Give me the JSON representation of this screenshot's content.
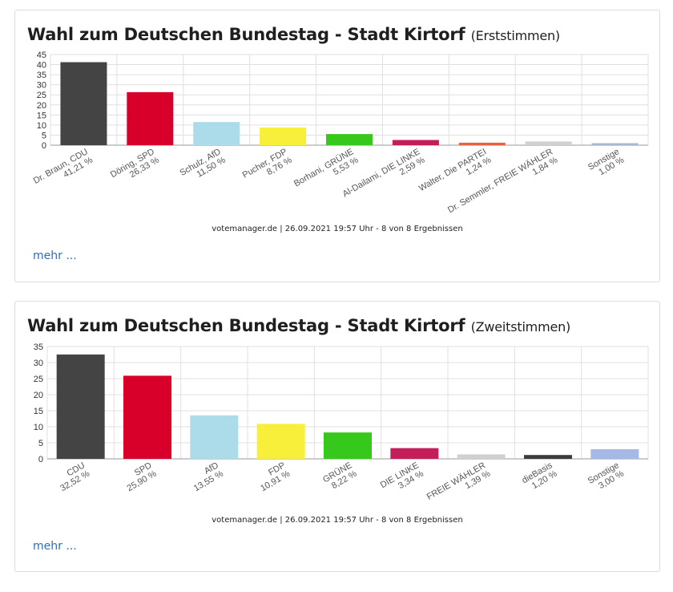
{
  "charts": [
    {
      "title": "Wahl zum Deutschen Bundestag - Stadt Kirtorf",
      "subtitle": "(Erststimmen)",
      "footnote": "votemanager.de | 26.09.2021 19:57 Uhr - 8 von 8 Ergebnissen",
      "more_label": "mehr ..."
    },
    {
      "title": "Wahl zum Deutschen Bundestag - Stadt Kirtorf",
      "subtitle": "(Zweitstimmen)",
      "footnote": "votemanager.de | 26.09.2021 19:57 Uhr - 8 von 8 Ergebnissen",
      "more_label": "mehr ..."
    }
  ],
  "chart_data": [
    {
      "type": "bar",
      "title": "Wahl zum Deutschen Bundestag - Stadt Kirtorf (Erststimmen)",
      "categories": [
        "Dr. Braun, CDU",
        "Döring, SPD",
        "Schulz, AfD",
        "Pucher, FDP",
        "Borhani, GRÜNE",
        "Al-Dailami, DIE LINKE",
        "Walter, Die PARTEI",
        "Dr. Semmler, FREIE WÄHLER",
        "Sonstige"
      ],
      "values": [
        41.21,
        26.33,
        11.5,
        8.76,
        5.53,
        2.59,
        1.24,
        1.84,
        1.0
      ],
      "value_labels": [
        "41,21 %",
        "26,33 %",
        "11,50 %",
        "8,76 %",
        "5,53 %",
        "2,59 %",
        "1,24 %",
        "1,84 %",
        "1,00 %"
      ],
      "colors": [
        "#444444",
        "#d8002a",
        "#acdce9",
        "#f7ef3a",
        "#36c81a",
        "#c41e5a",
        "#e8603c",
        "#d0d0d0",
        "#a6b8d6"
      ],
      "yticks": [
        0,
        5,
        10,
        15,
        20,
        25,
        30,
        35,
        40,
        45
      ],
      "ylim": [
        0,
        45
      ],
      "grid": true,
      "legend": "none"
    },
    {
      "type": "bar",
      "title": "Wahl zum Deutschen Bundestag - Stadt Kirtorf (Zweitstimmen)",
      "categories": [
        "CDU",
        "SPD",
        "AfD",
        "FDP",
        "GRÜNE",
        "DIE LINKE",
        "FREIE WÄHLER",
        "dieBasis",
        "Sonstige"
      ],
      "values": [
        32.52,
        25.9,
        13.55,
        10.91,
        8.22,
        3.34,
        1.39,
        1.2,
        3.0
      ],
      "value_labels": [
        "32,52 %",
        "25,90 %",
        "13,55 %",
        "10,91 %",
        "8,22 %",
        "3,34 %",
        "1,39 %",
        "1,20 %",
        "3,00 %"
      ],
      "colors": [
        "#444444",
        "#d8002a",
        "#acdce9",
        "#f7ef3a",
        "#36c81a",
        "#c41e5a",
        "#d0d0d0",
        "#3c3c3c",
        "#a6b8e6"
      ],
      "yticks": [
        0,
        5,
        10,
        15,
        20,
        25,
        30,
        35
      ],
      "ylim": [
        0,
        35
      ],
      "grid": true,
      "legend": "none"
    }
  ]
}
